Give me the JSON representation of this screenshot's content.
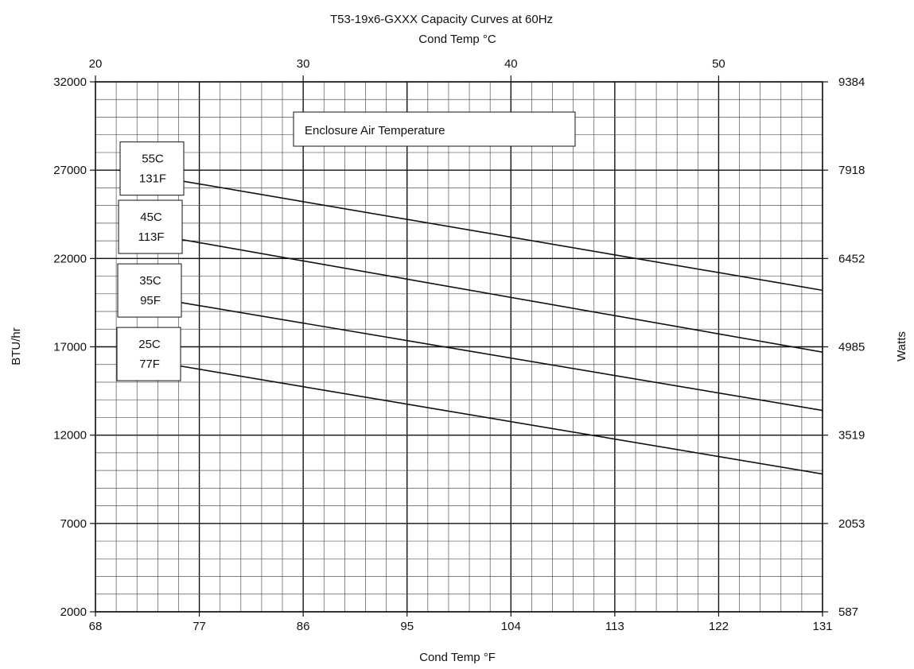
{
  "chart_data": {
    "type": "line",
    "title": "T53-19x6-GXXX Capacity Curves at 60Hz",
    "xlabel": "Cond Temp °F",
    "ylabel": "BTU/hr",
    "x2label": "Cond Temp °C",
    "y2label": "Watts",
    "xlim": [
      68,
      131
    ],
    "ylim": [
      2000,
      32000
    ],
    "x2lim": [
      20,
      55
    ],
    "y2lim": [
      587,
      9384
    ],
    "x_ticks": [
      68,
      77,
      86,
      95,
      104,
      113,
      122,
      131
    ],
    "x_tick_labels": [
      "68",
      "77",
      "86",
      "95",
      "104",
      "113",
      "122",
      "131"
    ],
    "y_ticks": [
      2000,
      7000,
      12000,
      17000,
      22000,
      27000,
      32000
    ],
    "y_tick_labels": [
      "2000",
      "7000",
      "12000",
      "17000",
      "22000",
      "27000",
      "32000"
    ],
    "x2_ticks": [
      20,
      30,
      40,
      50
    ],
    "x2_tick_labels": [
      "20",
      "30",
      "40",
      "50"
    ],
    "y2_ticks": [
      587,
      2053,
      3519,
      4985,
      6452,
      7918,
      9384
    ],
    "y2_tick_labels": [
      "587",
      "2053",
      "3519",
      "4985",
      "6452",
      "7918",
      "9384"
    ],
    "grid": true,
    "legend_title": "Enclosure Air Temperature",
    "series": [
      {
        "name": "55C 131F",
        "label_lines": [
          "55C",
          "131F"
        ],
        "x": [
          70,
          131
        ],
        "y": [
          27000,
          20200
        ]
      },
      {
        "name": "45C 113F",
        "label_lines": [
          "45C",
          "113F"
        ],
        "x": [
          70,
          131
        ],
        "y": [
          23700,
          16700
        ]
      },
      {
        "name": "35C 95F",
        "label_lines": [
          "35C",
          "95F"
        ],
        "x": [
          70,
          131
        ],
        "y": [
          20100,
          13400
        ]
      },
      {
        "name": "25C 77F",
        "label_lines": [
          "25C",
          "77F"
        ],
        "x": [
          70,
          131
        ],
        "y": [
          16500,
          9800
        ]
      }
    ]
  }
}
